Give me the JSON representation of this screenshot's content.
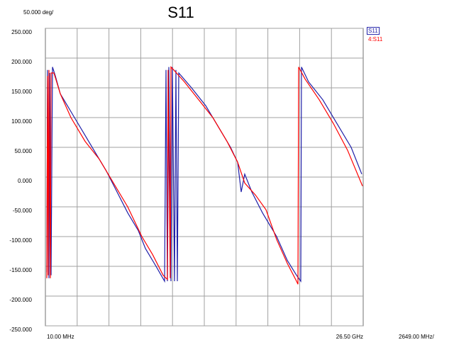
{
  "chart_data": {
    "type": "line",
    "title": "S11",
    "y_scale_label": "50.000 deg/",
    "x_scale_label": "2649.00 MHz/",
    "xlim": [
      10,
      26500
    ],
    "xticks": [
      {
        "value": 10,
        "label": "10.00 MHz"
      },
      {
        "value": 26500,
        "label": "26.50 GHz"
      }
    ],
    "ylim": [
      -250,
      250
    ],
    "yticks": [
      {
        "value": 250,
        "label": "250.000"
      },
      {
        "value": 200,
        "label": "200.000"
      },
      {
        "value": 150,
        "label": "150.000"
      },
      {
        "value": 100,
        "label": "100.000"
      },
      {
        "value": 50,
        "label": "50.000"
      },
      {
        "value": 0,
        "label": "0.000"
      },
      {
        "value": -50,
        "label": "-50.000"
      },
      {
        "value": -100,
        "label": "-100.000"
      },
      {
        "value": -150,
        "label": "-150.000"
      },
      {
        "value": -200,
        "label": "-200.000"
      },
      {
        "value": -250,
        "label": "-250.000"
      }
    ],
    "grid": true,
    "series": [
      {
        "name": "S11",
        "color": "#1f1fa8",
        "x": [
          128,
          187,
          305,
          365,
          483,
          601,
          838,
          1252,
          1843,
          2434,
          3321,
          4208,
          5095,
          5982,
          6869,
          7756,
          8347,
          9234,
          9944,
          10062,
          10180,
          10298,
          10475,
          10594,
          10771,
          10889,
          11007,
          11126,
          12190,
          13373,
          14556,
          15443,
          16034,
          16330,
          16626,
          17217,
          18104,
          19286,
          20173,
          20942,
          21297,
          21356,
          21947,
          23130,
          24312,
          25495,
          26382
        ],
        "values": [
          -160,
          180,
          -170,
          175,
          -165,
          185,
          170,
          140,
          120,
          100,
          70,
          40,
          10,
          -25,
          -60,
          -90,
          -120,
          -150,
          -175,
          180,
          -175,
          185,
          -175,
          185,
          -175,
          180,
          -175,
          175,
          150,
          120,
          80,
          50,
          25,
          -25,
          5,
          -25,
          -60,
          -100,
          -140,
          -165,
          -175,
          185,
          160,
          130,
          90,
          50,
          5
        ]
      },
      {
        "name": "4:S11",
        "color": "#ff0000",
        "x": [
          128,
          187,
          246,
          305,
          424,
          483,
          720,
          1252,
          2139,
          3321,
          4504,
          5686,
          6869,
          8051,
          8938,
          9825,
          10180,
          10239,
          10416,
          10475,
          10712,
          11599,
          12781,
          13964,
          15147,
          16034,
          16626,
          17513,
          18400,
          19286,
          20173,
          20942,
          21060,
          21119,
          21651,
          22834,
          24016,
          25199,
          26441
        ],
        "values": [
          -170,
          170,
          -165,
          180,
          -170,
          175,
          175,
          140,
          100,
          60,
          30,
          -10,
          -50,
          -100,
          -130,
          -165,
          -172,
          180,
          -170,
          185,
          180,
          160,
          130,
          100,
          60,
          25,
          -10,
          -30,
          -55,
          -105,
          -145,
          -175,
          -180,
          185,
          165,
          130,
          90,
          45,
          -15
        ]
      }
    ]
  }
}
